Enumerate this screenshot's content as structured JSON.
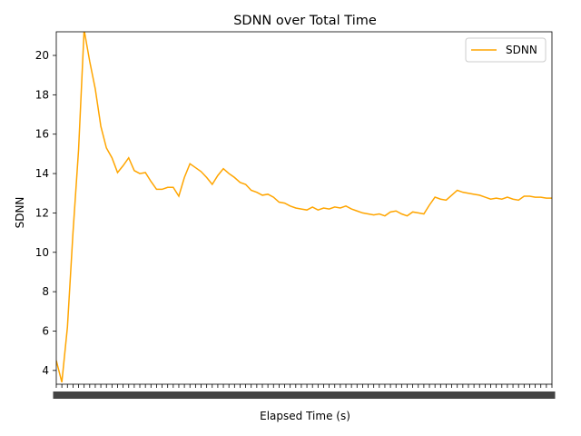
{
  "chart_data": {
    "type": "line",
    "title": "SDNN over Total Time",
    "xlabel": "Elapsed Time (s)",
    "ylabel": "SDNN",
    "ylim": [
      3.3,
      21.2
    ],
    "yticks": [
      4,
      6,
      8,
      10,
      12,
      14,
      16,
      18,
      20
    ],
    "xticks_note": "x-axis tick labels are densely overlapping and illegible",
    "grid": false,
    "legend_position": "top-right",
    "series": [
      {
        "name": "SDNN",
        "color": "#FFA500",
        "values": [
          4.5,
          3.4,
          6.2,
          11.0,
          15.2,
          21.3,
          19.7,
          18.3,
          16.4,
          15.3,
          14.8,
          14.05,
          14.4,
          14.8,
          14.15,
          14.0,
          14.05,
          13.6,
          13.2,
          13.2,
          13.3,
          13.3,
          12.85,
          13.8,
          14.5,
          14.3,
          14.1,
          13.8,
          13.45,
          13.9,
          14.25,
          14.0,
          13.8,
          13.55,
          13.45,
          13.15,
          13.05,
          12.9,
          12.95,
          12.8,
          12.55,
          12.5,
          12.35,
          12.25,
          12.2,
          12.15,
          12.3,
          12.15,
          12.25,
          12.2,
          12.3,
          12.25,
          12.35,
          12.2,
          12.1,
          12.0,
          11.95,
          11.9,
          11.95,
          11.85,
          12.05,
          12.1,
          11.95,
          11.85,
          12.05,
          12.0,
          11.95,
          12.4,
          12.8,
          12.7,
          12.65,
          12.9,
          13.15,
          13.05,
          13.0,
          12.95,
          12.9,
          12.8,
          12.7,
          12.75,
          12.7,
          12.8,
          12.7,
          12.65,
          12.85,
          12.85,
          12.8,
          12.8,
          12.75,
          12.75
        ]
      }
    ]
  }
}
